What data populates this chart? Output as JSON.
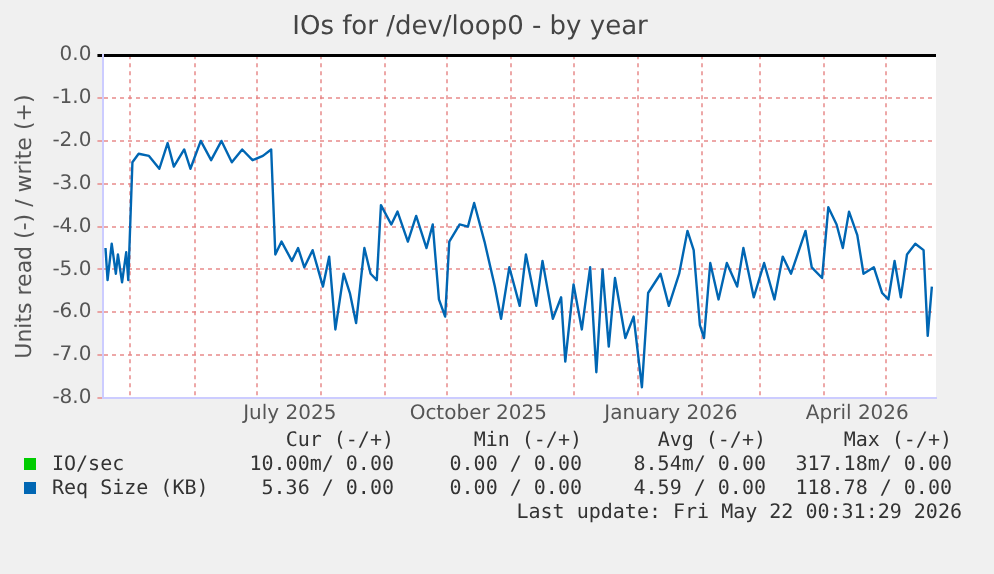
{
  "chart_data": {
    "type": "line",
    "title": "IOs for /dev/loop0 - by year",
    "ylabel": "Units read (-) / write (+)",
    "xlim": [
      "2025-04-18",
      "2026-05-25"
    ],
    "xticks": [
      {
        "value": "2025-05-01",
        "label": null
      },
      {
        "value": "2025-06-01",
        "label": null
      },
      {
        "value": "2025-07-01",
        "label": null
      },
      {
        "value": "2025-07-17",
        "label": "July 2025"
      },
      {
        "value": "2025-08-01",
        "label": null
      },
      {
        "value": "2025-09-01",
        "label": null
      },
      {
        "value": "2025-10-01",
        "label": null
      },
      {
        "value": "2025-10-16",
        "label": "October 2025"
      },
      {
        "value": "2025-11-01",
        "label": null
      },
      {
        "value": "2025-12-01",
        "label": null
      },
      {
        "value": "2026-01-01",
        "label": null
      },
      {
        "value": "2026-01-17",
        "label": "January 2026"
      },
      {
        "value": "2026-02-01",
        "label": null
      },
      {
        "value": "2026-03-01",
        "label": null
      },
      {
        "value": "2026-04-01",
        "label": null
      },
      {
        "value": "2026-04-17",
        "label": "April 2026"
      },
      {
        "value": "2026-05-01",
        "label": null
      }
    ],
    "ylim": [
      -8,
      0
    ],
    "yticks": [
      {
        "value": -8,
        "label": "-8.0"
      },
      {
        "value": -7,
        "label": "-7.0"
      },
      {
        "value": -6,
        "label": "-6.0"
      },
      {
        "value": -5,
        "label": "-5.0"
      },
      {
        "value": -4,
        "label": "-4.0"
      },
      {
        "value": -3,
        "label": "-3.0"
      },
      {
        "value": -2,
        "label": "-2.0"
      },
      {
        "value": -1,
        "label": "-1.0"
      },
      {
        "value": 0,
        "label": "0.0"
      }
    ],
    "grid": true,
    "legend": "bottom",
    "series": [
      {
        "name": "IO/sec",
        "color": "#00cc00",
        "values": [
          null,
          null,
          null,
          null,
          null,
          null,
          null,
          null,
          null,
          null,
          null,
          null,
          null,
          null,
          null,
          null,
          null,
          null,
          null,
          null,
          null,
          null,
          null,
          null,
          null,
          null,
          null,
          null,
          null,
          null,
          null,
          null,
          null,
          null,
          null,
          null,
          null,
          null,
          null,
          null,
          null,
          null,
          null,
          null,
          null,
          null,
          null,
          null,
          null,
          null,
          null,
          null,
          null,
          null,
          null,
          null,
          null,
          null,
          null,
          null,
          null,
          null,
          null,
          null,
          null,
          null,
          null,
          null,
          null,
          null,
          null,
          null,
          null,
          null,
          null,
          null,
          null,
          null,
          null,
          null,
          null,
          null,
          null,
          null,
          null,
          null,
          null,
          null,
          null,
          null,
          null,
          null,
          null,
          null,
          null,
          null,
          null,
          null,
          null,
          null,
          null,
          null,
          null,
          null,
          null,
          null,
          null,
          null,
          null,
          null
        ]
      },
      {
        "name": "Req Size (KB)",
        "color": "#0066b3",
        "values": [
          -4.5,
          -5.25,
          -4.4,
          -5.1,
          -4.65,
          -5.3,
          -4.6,
          -5.25,
          -2.5,
          -2.3,
          -2.35,
          -2.65,
          -2.05,
          -2.6,
          -2.2,
          -2.65,
          -2.0,
          -2.45,
          -2.0,
          -2.5,
          -2.2,
          -2.45,
          -2.35,
          -2.2,
          -4.65,
          -4.35,
          -4.8,
          -4.5,
          -4.95,
          -4.55,
          -5.4,
          -4.7,
          -6.4,
          -5.1,
          -5.55,
          -6.25,
          -4.5,
          -5.1,
          -5.25,
          -3.5,
          -3.95,
          -3.65,
          -4.35,
          -3.75,
          -4.5,
          -3.95,
          -5.7,
          -6.1,
          -4.35,
          -3.95,
          -4.0,
          -3.45,
          -4.35,
          -5.4,
          -6.15,
          -4.95,
          -5.85,
          -4.65,
          -5.85,
          -4.8,
          -6.15,
          -5.65,
          -7.15,
          -5.35,
          -6.4,
          -4.95,
          -7.4,
          -5.0,
          -6.8,
          -5.2,
          -6.6,
          -6.1,
          -7.75,
          -5.55,
          -5.1,
          -5.85,
          -5.1,
          -4.1,
          -4.55,
          -6.3,
          -6.6,
          -4.85,
          -5.7,
          -4.85,
          -5.4,
          -4.5,
          -5.65,
          -4.85,
          -5.7,
          -4.7,
          -5.1,
          -4.1,
          -4.95,
          -5.2,
          -3.55,
          -3.95,
          -4.5,
          -3.65,
          -4.2,
          -5.1,
          -4.95,
          -5.55,
          -5.7,
          -4.8,
          -5.65,
          -4.65,
          -4.4,
          -4.55,
          -6.55,
          -5.4
        ]
      }
    ],
    "x": [
      "2025-04-19",
      "2025-04-20",
      "2025-04-22",
      "2025-04-24",
      "2025-04-25",
      "2025-04-27",
      "2025-04-29",
      "2025-04-30",
      "2025-05-02",
      "2025-05-05",
      "2025-05-10",
      "2025-05-15",
      "2025-05-19",
      "2025-05-22",
      "2025-05-27",
      "2025-05-30",
      "2025-06-04",
      "2025-06-09",
      "2025-06-14",
      "2025-06-19",
      "2025-06-24",
      "2025-06-29",
      "2025-07-04",
      "2025-07-08",
      "2025-07-10",
      "2025-07-13",
      "2025-07-18",
      "2025-07-21",
      "2025-07-24",
      "2025-07-28",
      "2025-08-02",
      "2025-08-05",
      "2025-08-08",
      "2025-08-12",
      "2025-08-15",
      "2025-08-18",
      "2025-08-22",
      "2025-08-25",
      "2025-08-28",
      "2025-08-30",
      "2025-09-04",
      "2025-09-07",
      "2025-09-12",
      "2025-09-16",
      "2025-09-21",
      "2025-09-24",
      "2025-09-27",
      "2025-09-30",
      "2025-10-02",
      "2025-10-07",
      "2025-10-11",
      "2025-10-14",
      "2025-10-19",
      "2025-10-24",
      "2025-10-27",
      "2025-10-31",
      "2025-11-05",
      "2025-11-08",
      "2025-11-13",
      "2025-11-16",
      "2025-11-21",
      "2025-11-25",
      "2025-11-27",
      "2025-12-01",
      "2025-12-05",
      "2025-12-09",
      "2025-12-12",
      "2025-12-15",
      "2025-12-18",
      "2025-12-21",
      "2025-12-26",
      "2025-12-30",
      "2026-01-03",
      "2026-01-06",
      "2026-01-12",
      "2026-01-16",
      "2026-01-21",
      "2026-01-25",
      "2026-01-28",
      "2026-01-31",
      "2026-02-02",
      "2026-02-05",
      "2026-02-09",
      "2026-02-13",
      "2026-02-18",
      "2026-02-21",
      "2026-02-26",
      "2026-03-03",
      "2026-03-08",
      "2026-03-12",
      "2026-03-16",
      "2026-03-23",
      "2026-03-26",
      "2026-03-31",
      "2026-04-03",
      "2026-04-07",
      "2026-04-10",
      "2026-04-13",
      "2026-04-17",
      "2026-04-20",
      "2026-04-25",
      "2026-04-29",
      "2026-05-02",
      "2026-05-05",
      "2026-05-08",
      "2026-05-11",
      "2026-05-15",
      "2026-05-19",
      "2026-05-21",
      "2026-05-23"
    ],
    "annotations": [
      "Cur (-/+)",
      "Min (-/+)",
      "Avg (-/+)",
      "Max (-/+)",
      "10.00m/ 0.00",
      "0.00 / 0.00",
      "8.54m/ 0.00",
      "317.18m/ 0.00",
      "5.36 / 0.00",
      "0.00 / 0.00",
      "4.59 / 0.00",
      "118.78 / 0.00",
      "Last update: Fri May 22 00:31:29 2026"
    ]
  }
}
